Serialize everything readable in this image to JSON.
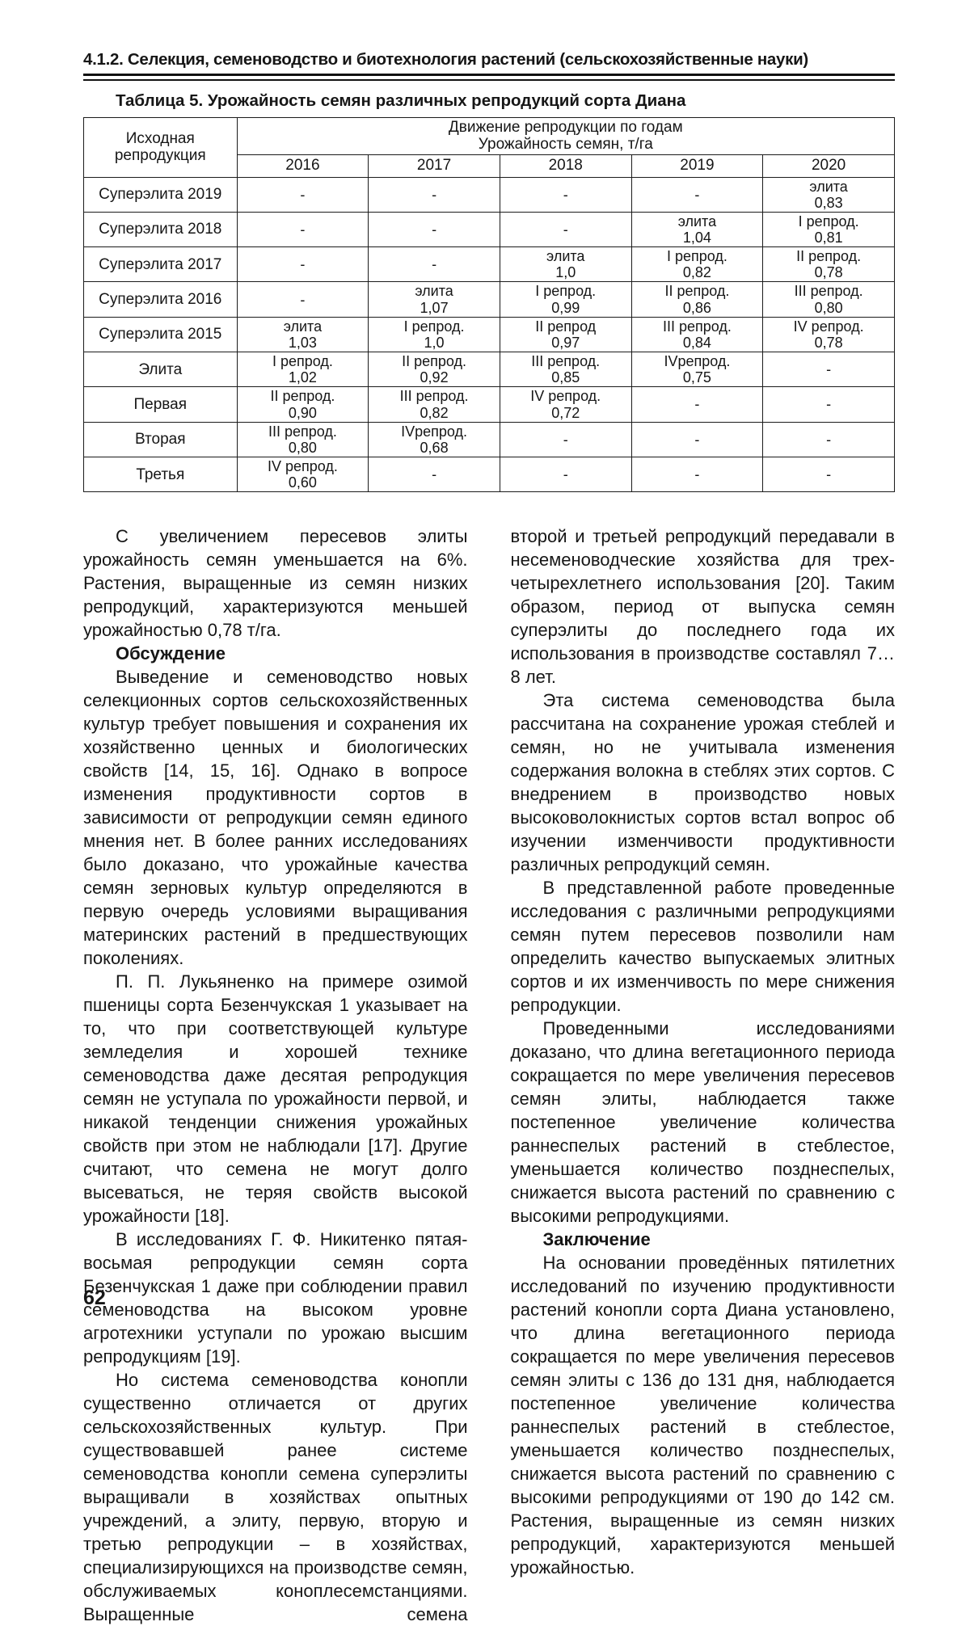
{
  "header": {
    "section_title": "4.1.2. Селекция, семеноводство и биотехнология растений (сельскохозяйственные науки)"
  },
  "table": {
    "title": "Таблица 5. Урожайность семян различных репродукций сорта Диана",
    "header": {
      "col_initial": "Исходная\nрепродукция",
      "group": "Движение репродукции по годам\nУрожайность семян, т/га",
      "years": [
        "2016",
        "2017",
        "2018",
        "2019",
        "2020"
      ]
    },
    "rows": [
      {
        "name": "Суперэлита 2019",
        "cells": [
          "-",
          "-",
          "-",
          "-",
          "элита\n0,83"
        ]
      },
      {
        "name": "Суперэлита 2018",
        "cells": [
          "-",
          "-",
          "-",
          "элита\n1,04",
          "I репрод.\n0,81"
        ]
      },
      {
        "name": "Суперэлита 2017",
        "cells": [
          "-",
          "-",
          "элита\n1,0",
          "I репрод.\n0,82",
          "II репрод.\n0,78"
        ]
      },
      {
        "name": "Суперэлита 2016",
        "cells": [
          "-",
          "элита\n1,07",
          "I репрод.\n0,99",
          "II репрод.\n0,86",
          "III репрод.\n0,80"
        ]
      },
      {
        "name": "Суперэлита 2015",
        "cells": [
          "элита\n1,03",
          "I репрод.\n1,0",
          "II репрод\n0,97",
          "III репрод.\n0,84",
          "IV репрод.\n0,78"
        ]
      },
      {
        "name": "Элита",
        "cells": [
          "I репрод.\n1,02",
          "II репрод.\n0,92",
          "III репрод.\n0,85",
          "IVрепрод.\n0,75",
          "-"
        ]
      },
      {
        "name": "Первая",
        "cells": [
          "II репрод.\n0,90",
          "III репрод.\n0,82",
          "IV репрод.\n0,72",
          "-",
          "-"
        ]
      },
      {
        "name": "Вторая",
        "cells": [
          "III репрод.\n0,80",
          "IVрепрод.\n0,68",
          "-",
          "-",
          "-"
        ]
      },
      {
        "name": "Третья",
        "cells": [
          "IV репрод.\n0,60",
          "-",
          "-",
          "-",
          "-"
        ]
      }
    ]
  },
  "left_column": {
    "p1": "С увеличением пересевов элиты урожайность семян уменьшается на 6%. Растения, выращенные из семян низких репродукций, характеризуются меньшей урожайностью 0,78 т/га.",
    "h1": "Обсуждение",
    "p2": "Выведение и семеноводство новых селекционных сортов сельскохозяйственных культур требует повышения и сохранения их хозяйственно ценных и биологических свойств [14, 15, 16]. Однако в вопросе изменения продуктивности сортов в зависимости от репродукции семян единого мнения нет. В более ранних исследованиях было доказано, что урожайные качества семян зерновых культур определяются в первую очередь условиями выращивания материнских растений в предшествующих поколениях.",
    "p3": "П. П. Лукьяненко на примере озимой пшеницы сорта Безенчукская 1 указывает на то, что при соответствующей культуре земледелия и хорошей технике семеноводства даже десятая репродукция семян не уступала по урожайности первой, и никакой тенденции снижения урожайных свойств при этом не наблюдали [17]. Другие считают, что семена не могут долго высеваться, не теряя свойств высокой урожайности [18].",
    "p4": "В исследованиях Г. Ф. Никитенко пятая-восьмая репродукции семян сорта Безенчукская 1 даже при соблюдении правил семеноводства на высоком уровне агротехники уступали по урожаю высшим репродукциям [19].",
    "p5": "Но система семеноводства конопли существенно отличается от других сельскохозяйственных культур. При существовавшей ранее системе семеноводства конопли семена суперэлиты выращивали в хозяйствах опытных учреждений, а элиту, первую, вторую и третью репродукции – в хозяйствах, специализирующихся на производстве семян, обслуживаемых коноплесемстанциями. Выращенные семена"
  },
  "right_column": {
    "p1": "второй и третьей репродукций передавали в несеменоводческие хозяйства для трех-четырехлетнего использования [20]. Таким образом, период от выпуска семян суперэлиты до последнего года их использования в производстве составлял 7…8 лет.",
    "p2": "Эта система семеноводства была рассчитана на сохранение урожая стеблей и семян, но не учитывала изменения содержания волокна в стеблях этих сортов. С внедрением в производство новых высоковолокнистых сортов встал вопрос об изучении изменчивости продуктивности различных репродукций семян.",
    "p3": "В представленной работе проведенные исследования с различными репродукциями семян путем пересевов позволили нам определить качество выпускаемых элитных сортов и их изменчивость по мере снижения репродукции.",
    "p4": "Проведенными исследованиями доказано, что длина вегетационного периода сокращается по мере увеличения пересевов семян элиты, наблюдается также постепенное увеличение количества раннеспелых растений в стеблестое, уменьшается количество позднеспелых, снижается высота растений по сравнению с высокими репродукциями.",
    "h1": "Заключение",
    "p5": "На основании проведённых пятилетних исследований по изучению продуктивности растений конопли сорта Диана установлено, что длина вегетационного периода сокращается по мере увеличения пересевов семян элиты с 136 до 131 дня, наблюдается постепенное увеличение количества раннеспелых растений в стеблестое, уменьшается количество позднеспелых, снижается высота растений по сравнению с высокими репродукциями от 190 до 142 см. Растения, выращенные из семян низких репродукций, характеризуются меньшей урожайностью."
  },
  "page": {
    "number": "62"
  }
}
